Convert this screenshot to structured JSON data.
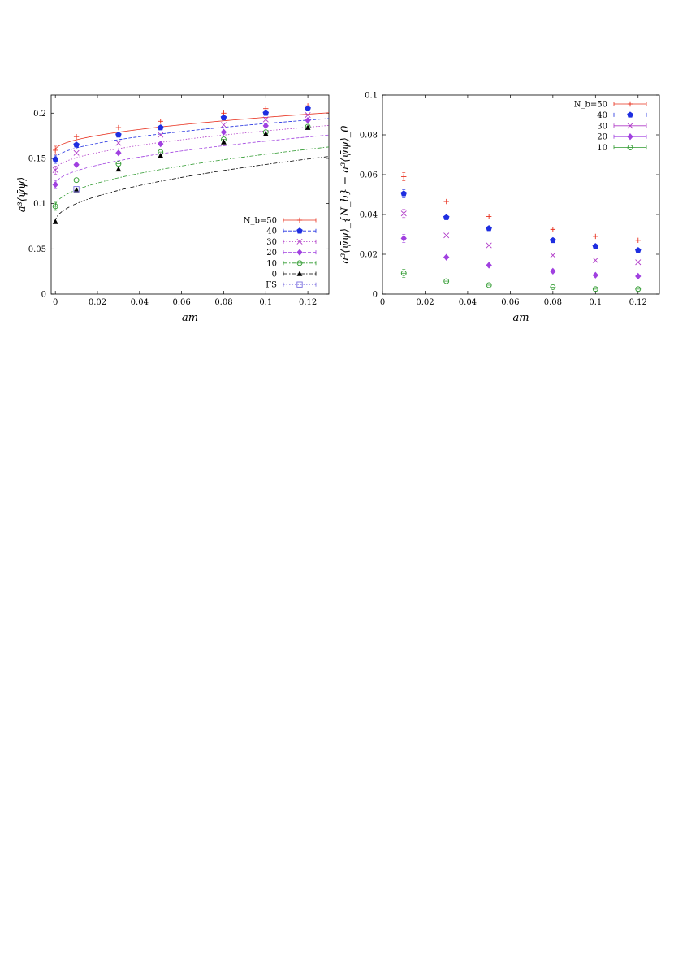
{
  "chart_data": [
    {
      "type": "line",
      "xlabel": "am",
      "ylabel": "a³⟨ψ̄ψ⟩",
      "xlim": [
        -0.002,
        0.13
      ],
      "ylim": [
        0,
        0.22
      ],
      "xticks": [
        "0",
        "0.02",
        "0.04",
        "0.06",
        "0.08",
        "0.1",
        "0.12"
      ],
      "yticks": [
        "0",
        "0.05",
        "0.1",
        "0.15",
        "0.2"
      ],
      "legend_title": "N_b=",
      "legend_position": "bottom-right",
      "series": [
        {
          "name": "50",
          "legend_label": "N_b=50",
          "color": "#e8301e",
          "marker": "plus",
          "line": "solid",
          "x": [
            0,
            0.01,
            0.03,
            0.05,
            0.08,
            0.1,
            0.12
          ],
          "y": [
            0.159,
            0.174,
            0.184,
            0.191,
            0.2,
            0.205,
            0.208
          ],
          "fit": [
            0.159,
            0.115
          ]
        },
        {
          "name": "40",
          "legend_label": "40",
          "color": "#1e2ee0",
          "marker": "pentagon",
          "line": "dashed",
          "x": [
            0,
            0.01,
            0.03,
            0.05,
            0.08,
            0.1,
            0.12
          ],
          "y": [
            0.149,
            0.165,
            0.176,
            0.184,
            0.195,
            0.2,
            0.205
          ],
          "fit": [
            0.149,
            0.125
          ]
        },
        {
          "name": "30",
          "legend_label": "30",
          "color": "#b03ac8",
          "marker": "cross",
          "line": "dotted",
          "x": [
            0,
            0.01,
            0.03,
            0.05,
            0.08,
            0.1,
            0.12
          ],
          "y": [
            0.137,
            0.156,
            0.167,
            0.176,
            0.187,
            0.193,
            0.198
          ],
          "fit": [
            0.137,
            0.137
          ]
        },
        {
          "name": "20",
          "legend_label": "20",
          "color": "#a040e0",
          "marker": "diamond",
          "line": "dashed",
          "x": [
            0,
            0.01,
            0.03,
            0.05,
            0.08,
            0.1,
            0.12
          ],
          "y": [
            0.121,
            0.143,
            0.156,
            0.166,
            0.179,
            0.186,
            0.192
          ],
          "fit": [
            0.121,
            0.152
          ]
        },
        {
          "name": "10",
          "legend_label": "10",
          "color": "#2e9a2e",
          "marker": "circle",
          "line": "dashdot",
          "x": [
            0,
            0.01,
            0.03,
            0.05,
            0.08,
            0.1,
            0.12
          ],
          "y": [
            0.097,
            0.126,
            0.144,
            0.157,
            0.171,
            0.179,
            0.185
          ],
          "fit": [
            0.097,
            0.182
          ]
        },
        {
          "name": "0",
          "legend_label": "0",
          "color": "#000000",
          "marker": "triangle",
          "line": "dashdot",
          "x": [
            0,
            0.01,
            0.03,
            0.05,
            0.08,
            0.1,
            0.12
          ],
          "y": [
            0.08,
            0.115,
            0.138,
            0.153,
            0.168,
            0.177,
            0.184
          ],
          "fit": [
            0.08,
            0.2
          ]
        },
        {
          "name": "FS",
          "legend_label": "FS",
          "color": "#7a6ee0",
          "marker": "square",
          "line": "dotted",
          "x": [
            0.01
          ],
          "y": [
            0.116
          ]
        }
      ]
    },
    {
      "type": "scatter",
      "xlabel": "am",
      "ylabel": "a³⟨ψ̄ψ⟩_{N_b} − a³⟨ψ̄ψ⟩_0",
      "xlim": [
        0,
        0.13
      ],
      "ylim": [
        0,
        0.1
      ],
      "xticks": [
        "0",
        "0.02",
        "0.04",
        "0.06",
        "0.08",
        "0.1",
        "0.12"
      ],
      "yticks": [
        "0",
        "0.02",
        "0.04",
        "0.06",
        "0.08",
        "0.1"
      ],
      "legend_position": "top-right",
      "series": [
        {
          "name": "50",
          "legend_label": "N_b=50",
          "color": "#e8301e",
          "marker": "plus",
          "x": [
            0.01,
            0.03,
            0.05,
            0.08,
            0.1,
            0.12
          ],
          "y": [
            0.059,
            0.0465,
            0.039,
            0.0325,
            0.029,
            0.027
          ]
        },
        {
          "name": "40",
          "legend_label": "40",
          "color": "#1e2ee0",
          "marker": "pentagon",
          "x": [
            0.01,
            0.03,
            0.05,
            0.08,
            0.1,
            0.12
          ],
          "y": [
            0.0505,
            0.0385,
            0.033,
            0.027,
            0.024,
            0.022
          ]
        },
        {
          "name": "30",
          "legend_label": "30",
          "color": "#b03ac8",
          "marker": "cross",
          "x": [
            0.01,
            0.03,
            0.05,
            0.08,
            0.1,
            0.12
          ],
          "y": [
            0.0405,
            0.0295,
            0.0245,
            0.0195,
            0.017,
            0.016
          ]
        },
        {
          "name": "20",
          "legend_label": "20",
          "color": "#a040e0",
          "marker": "diamond",
          "x": [
            0.01,
            0.03,
            0.05,
            0.08,
            0.1,
            0.12
          ],
          "y": [
            0.028,
            0.0185,
            0.0145,
            0.0115,
            0.0095,
            0.009
          ]
        },
        {
          "name": "10",
          "legend_label": "10",
          "color": "#2e9a2e",
          "marker": "circle",
          "x": [
            0.01,
            0.03,
            0.05,
            0.08,
            0.1,
            0.12
          ],
          "y": [
            0.0105,
            0.0065,
            0.0045,
            0.0035,
            0.0025,
            0.0025
          ]
        }
      ]
    }
  ]
}
